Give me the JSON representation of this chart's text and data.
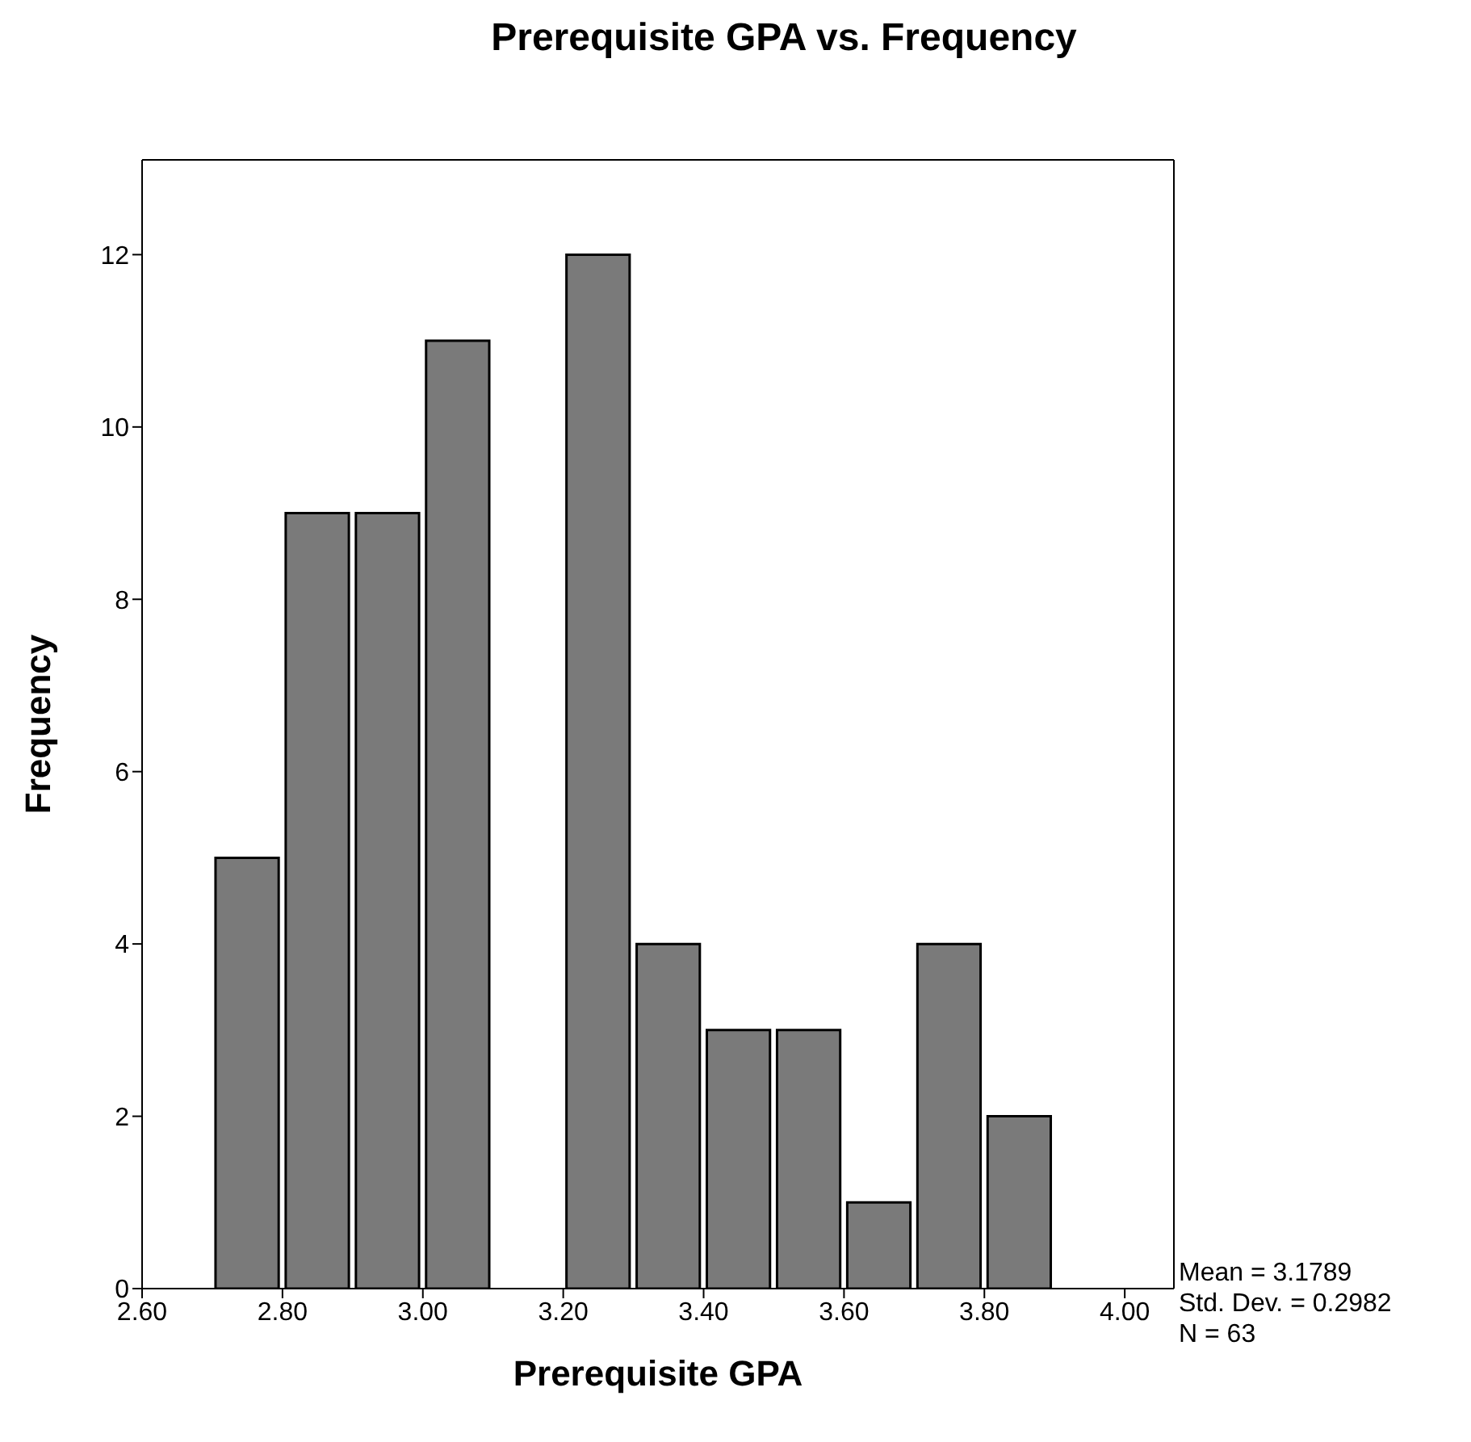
{
  "chart_data": {
    "type": "histogram",
    "title": "Prerequisite GPA vs. Frequency",
    "xlabel": "Prerequisite GPA",
    "ylabel": "Frequency",
    "bins": [
      2.7,
      2.8,
      2.9,
      3.0,
      3.1,
      3.2,
      3.3,
      3.4,
      3.5,
      3.6,
      3.7,
      3.8,
      3.9
    ],
    "values": [
      5,
      9,
      9,
      11,
      0,
      12,
      4,
      3,
      3,
      1,
      4,
      2
    ],
    "color": "#7a7a7a",
    "xlim": [
      2.6,
      4.07
    ],
    "xticks": [
      {
        "value": 2.6,
        "label": "2.60"
      },
      {
        "value": 2.8,
        "label": "2.80"
      },
      {
        "value": 3.0,
        "label": "3.00"
      },
      {
        "value": 3.2,
        "label": "3.20"
      },
      {
        "value": 3.4,
        "label": "3.40"
      },
      {
        "value": 3.6,
        "label": "3.60"
      },
      {
        "value": 3.8,
        "label": "3.80"
      },
      {
        "value": 4.0,
        "label": "4.00"
      }
    ],
    "ylim": [
      0,
      13.1
    ],
    "yticks": [
      0,
      2,
      4,
      6,
      8,
      10,
      12
    ],
    "grid": false,
    "annotations": [
      "Mean = 3.1789",
      "Std. Dev. = 0.2982",
      "N = 63"
    ]
  }
}
